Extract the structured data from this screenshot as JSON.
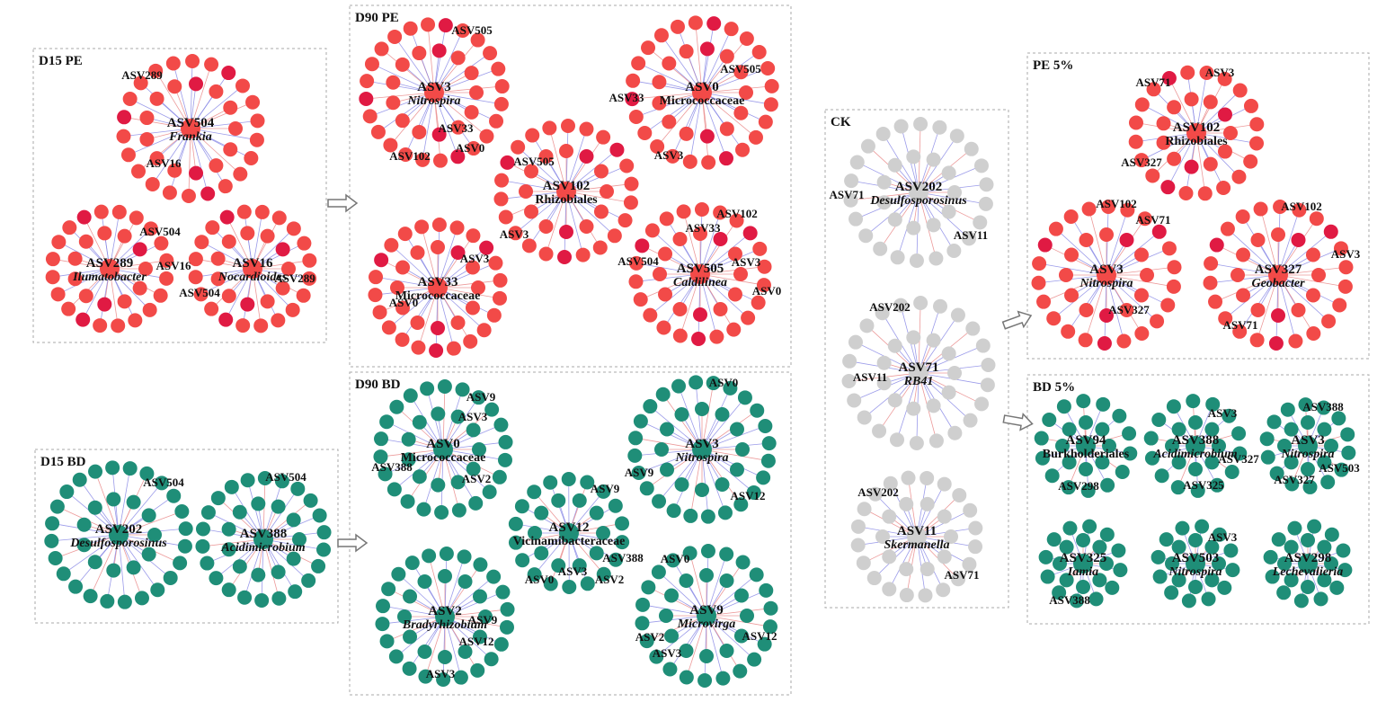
{
  "colors": {
    "pe_node": "#f24a48",
    "pe_node_dark": "#e01a43",
    "bd_node": "#1f8e78",
    "ck_node": "#cfcfcf",
    "pos_edge": "#e98888",
    "neg_edge": "#8a8ae6",
    "panel_border": "#aaaaaa",
    "arrow": "#777777"
  },
  "panels": [
    {
      "id": "d15pe",
      "title": "D15 PE",
      "networks": [
        {
          "id": "d15pe-asv504",
          "hub": "ASV504",
          "taxon": "Frankia",
          "italic": true,
          "color": "pe",
          "labels": [
            "ASV289",
            "ASV16"
          ]
        },
        {
          "id": "d15pe-asv289",
          "hub": "ASV289",
          "taxon": "Ilumatobacter",
          "italic": true,
          "color": "pe",
          "labels": [
            "ASV504",
            "ASV16"
          ]
        },
        {
          "id": "d15pe-asv16",
          "hub": "ASV16",
          "taxon": "Nocardioides",
          "italic": true,
          "color": "pe",
          "labels": [
            "ASV504",
            "ASV289"
          ]
        }
      ]
    },
    {
      "id": "d90pe",
      "title": "D90 PE",
      "networks": [
        {
          "id": "d90pe-asv3",
          "hub": "ASV3",
          "taxon": "Nitrospira",
          "italic": true,
          "color": "pe",
          "labels": [
            "ASV505",
            "ASV33",
            "ASV0",
            "ASV102"
          ]
        },
        {
          "id": "d90pe-asv0",
          "hub": "ASV0",
          "taxon": "Micrococcaceae",
          "italic": false,
          "color": "pe",
          "labels": [
            "ASV505",
            "ASV33",
            "ASV3"
          ]
        },
        {
          "id": "d90pe-asv102",
          "hub": "ASV102",
          "taxon": "Rhizobiales",
          "italic": false,
          "color": "pe",
          "labels": [
            "ASV505",
            "ASV3"
          ]
        },
        {
          "id": "d90pe-asv33",
          "hub": "ASV33",
          "taxon": "Micrococcaceae",
          "italic": false,
          "color": "pe",
          "labels": [
            "ASV3",
            "ASV0"
          ]
        },
        {
          "id": "d90pe-asv505",
          "hub": "ASV505",
          "taxon": "Caldilinea",
          "italic": true,
          "color": "pe",
          "labels": [
            "ASV102",
            "ASV33",
            "ASV504",
            "ASV3",
            "ASV0"
          ]
        }
      ]
    },
    {
      "id": "d15bd",
      "title": "D15 BD",
      "networks": [
        {
          "id": "d15bd-asv202",
          "hub": "ASV202",
          "taxon": "Desulfosporosinus",
          "italic": true,
          "color": "bd",
          "labels": [
            "ASV504"
          ]
        },
        {
          "id": "d15bd-asv388",
          "hub": "ASV388",
          "taxon": "Acidimicrobium",
          "italic": true,
          "color": "bd",
          "labels": [
            "ASV504"
          ]
        }
      ]
    },
    {
      "id": "d90bd",
      "title": "D90 BD",
      "networks": [
        {
          "id": "d90bd-asv0",
          "hub": "ASV0",
          "taxon": "Micrococcaceae",
          "italic": false,
          "color": "bd",
          "labels": [
            "ASV9",
            "ASV3",
            "ASV388",
            "ASV2"
          ]
        },
        {
          "id": "d90bd-asv3",
          "hub": "ASV3",
          "taxon": "Nitrospira",
          "italic": true,
          "color": "bd",
          "labels": [
            "ASV0",
            "ASV9",
            "ASV12"
          ]
        },
        {
          "id": "d90bd-asv12",
          "hub": "ASV12",
          "taxon": "Vicinamibacteraceae",
          "italic": false,
          "color": "bd",
          "labels": [
            "ASV9",
            "ASV388",
            "ASV0",
            "ASV3",
            "ASV2"
          ]
        },
        {
          "id": "d90bd-asv2",
          "hub": "ASV2",
          "taxon": "Bradyrhizobium",
          "italic": true,
          "color": "bd",
          "labels": [
            "ASV9",
            "ASV12",
            "ASV3"
          ]
        },
        {
          "id": "d90bd-asv9",
          "hub": "ASV9",
          "taxon": "Microvirga",
          "italic": true,
          "color": "bd",
          "labels": [
            "ASV0",
            "ASV12",
            "ASV2",
            "ASV3"
          ]
        }
      ]
    },
    {
      "id": "ck",
      "title": "CK",
      "networks": [
        {
          "id": "ck-asv202",
          "hub": "ASV202",
          "taxon": "Desulfosporosinus",
          "italic": true,
          "color": "ck",
          "labels": [
            "ASV71",
            "ASV11"
          ]
        },
        {
          "id": "ck-asv71",
          "hub": "ASV71",
          "taxon": "RB41",
          "italic": true,
          "color": "ck",
          "labels": [
            "ASV202",
            "ASV11"
          ]
        },
        {
          "id": "ck-asv11",
          "hub": "ASV11",
          "taxon": "Skermanella",
          "italic": true,
          "color": "ck",
          "labels": [
            "ASV202",
            "ASV71"
          ]
        }
      ]
    },
    {
      "id": "pe5",
      "title": "PE 5%",
      "networks": [
        {
          "id": "pe5-asv102",
          "hub": "ASV102",
          "taxon": "Rhizobiales",
          "italic": false,
          "color": "pe",
          "labels": [
            "ASV71",
            "ASV3",
            "ASV327"
          ]
        },
        {
          "id": "pe5-asv3",
          "hub": "ASV3",
          "taxon": "Nitrospira",
          "italic": true,
          "color": "pe",
          "labels": [
            "ASV102",
            "ASV71",
            "ASV327"
          ]
        },
        {
          "id": "pe5-asv327",
          "hub": "ASV327",
          "taxon": "Geobacter",
          "italic": true,
          "color": "pe",
          "labels": [
            "ASV102",
            "ASV3",
            "ASV71"
          ]
        }
      ]
    },
    {
      "id": "bd5",
      "title": "BD 5%",
      "networks": [
        {
          "id": "bd5-asv94",
          "hub": "ASV94",
          "taxon": "Burkholderiales",
          "italic": false,
          "color": "bd",
          "labels": [
            "ASV298"
          ]
        },
        {
          "id": "bd5-asv388",
          "hub": "ASV388",
          "taxon": "Acidimicrobium",
          "italic": true,
          "color": "bd",
          "labels": [
            "ASV3",
            "ASV327",
            "ASV325"
          ]
        },
        {
          "id": "bd5-asv3",
          "hub": "ASV3",
          "taxon": "Nitrospira",
          "italic": true,
          "color": "bd",
          "labels": [
            "ASV388",
            "ASV503",
            "ASV327"
          ]
        },
        {
          "id": "bd5-asv325",
          "hub": "ASV325",
          "taxon": "Iamia",
          "italic": true,
          "color": "bd",
          "labels": [
            "ASV388"
          ]
        },
        {
          "id": "bd5-asv503",
          "hub": "ASV503",
          "taxon": "Nitrospira",
          "italic": true,
          "color": "bd",
          "labels": [
            "ASV3"
          ]
        },
        {
          "id": "bd5-asv298",
          "hub": "ASV298",
          "taxon": "Lechevalieria",
          "italic": true,
          "color": "bd",
          "labels": []
        }
      ]
    }
  ]
}
